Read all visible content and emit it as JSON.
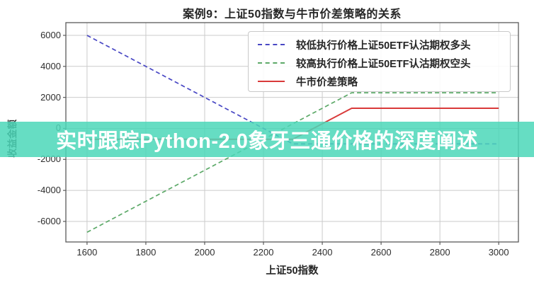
{
  "figure": {
    "watermark": {
      "text": "实时跟踪Python-2.0象牙三通价格的深度阐述",
      "band_color": "#4bd7b9",
      "band_opacity": 0.85,
      "text_color": "#ffffff"
    }
  },
  "colors": {
    "grid": "#cbcbcb",
    "spine": "#5a5a5a",
    "tick": "#5a5a5a",
    "title_text": "#262626",
    "tick_label_text": "#2e2e2e"
  },
  "chart_data": {
    "type": "line",
    "title": "案例9：上证50指数与牛市价差策略的关系",
    "xlabel": "上证50指数",
    "ylabel": "收益金额",
    "x_ticks": [
      1600,
      1800,
      2000,
      2200,
      2400,
      2600,
      2800,
      3000
    ],
    "y_ticks": [
      6000,
      4000,
      2000,
      0,
      -2000,
      -4000,
      -6000
    ],
    "xlim": [
      1528,
      3067
    ],
    "ylim": [
      -7325,
      6820
    ],
    "grid": true,
    "legend_position": "upper-right",
    "series": [
      {
        "label": "较低执行价格上证50ETF认沽期权多头",
        "color": "#4847c4",
        "line_style": "dashed",
        "points": [
          [
            1600,
            6000
          ],
          [
            2300,
            -1000
          ],
          [
            3000,
            -1000
          ]
        ]
      },
      {
        "label": "较高执行价格上证50ETF认沽期权空头",
        "color": "#5ca968",
        "line_style": "dashed",
        "points": [
          [
            1600,
            -6700
          ],
          [
            2500,
            2300
          ],
          [
            3000,
            2300
          ]
        ]
      },
      {
        "label": "牛市价差策略",
        "color": "#d93a3a",
        "line_style": "solid",
        "points": [
          [
            1600,
            -700
          ],
          [
            2300,
            -700
          ],
          [
            2500,
            1300
          ],
          [
            3000,
            1300
          ]
        ]
      }
    ]
  }
}
